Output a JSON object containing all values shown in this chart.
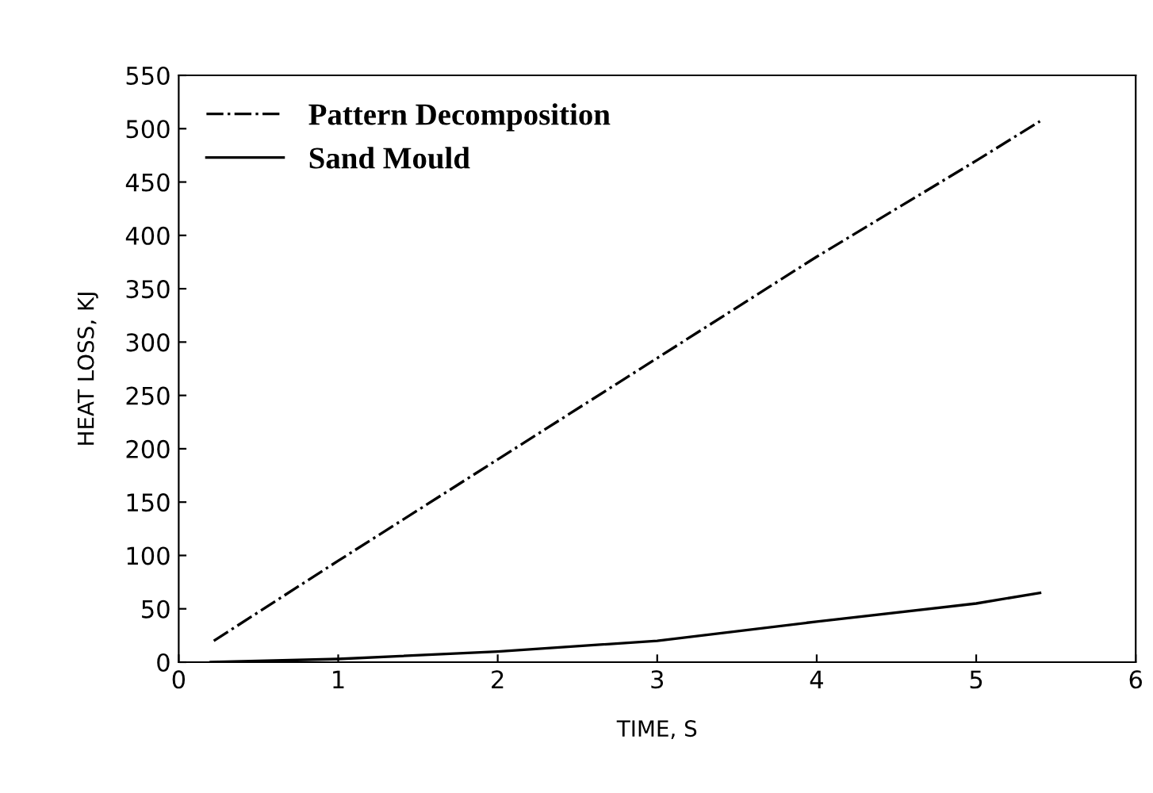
{
  "chart_data": {
    "type": "line",
    "xlabel": "TIME, S",
    "ylabel": "HEAT LOSS, KJ",
    "xlim": [
      0,
      6
    ],
    "xticks": [
      0,
      1,
      2,
      3,
      4,
      5,
      6
    ],
    "ylim": [
      0,
      550
    ],
    "yticks": [
      0,
      50,
      100,
      150,
      200,
      250,
      300,
      350,
      400,
      450,
      500,
      550
    ],
    "grid": false,
    "legend": "top left",
    "marker": "none",
    "series": [
      {
        "name": "Pattern Decomposition",
        "color": "#000000",
        "line_style": "dashdot",
        "x": [
          0.22,
          1,
          2,
          3,
          4,
          5,
          5.4
        ],
        "values": [
          20,
          95,
          190,
          285,
          380,
          470,
          507
        ]
      },
      {
        "name": "Sand Mould",
        "color": "#000000",
        "line_style": "solid",
        "x": [
          0.2,
          1,
          2,
          3,
          4,
          5,
          5.4
        ],
        "values": [
          0,
          3,
          10,
          20,
          38,
          55,
          65
        ]
      }
    ]
  }
}
